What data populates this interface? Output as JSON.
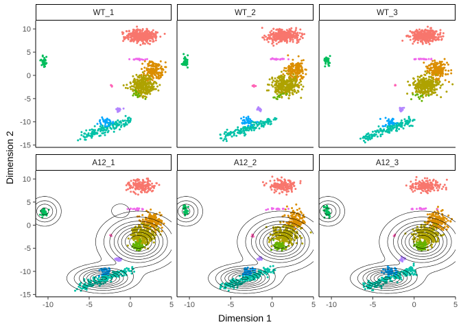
{
  "chart_data": {
    "type": "scatter",
    "title": "",
    "xlabel": "Dimension 1",
    "ylabel": "Dimension 2",
    "xlim": [
      -11.5,
      5
    ],
    "ylim": [
      -15.5,
      11.8
    ],
    "x_ticks": [
      -10,
      -5,
      0,
      5
    ],
    "x_tick_labels": [
      "-10",
      "-5",
      "0",
      "5"
    ],
    "y_ticks": [
      10,
      5,
      0,
      -5,
      -10,
      -15
    ],
    "y_tick_labels": [
      "10",
      "5",
      "0",
      "-5",
      "-10",
      "-15"
    ],
    "grid": false,
    "legend": "none",
    "facet_layout": {
      "rows": 2,
      "cols": 3
    },
    "panels": [
      {
        "label": "WT_1",
        "density_contours": false
      },
      {
        "label": "WT_2",
        "density_contours": false
      },
      {
        "label": "WT_3",
        "density_contours": false
      },
      {
        "label": "A12_1",
        "density_contours": true
      },
      {
        "label": "A12_2",
        "density_contours": true
      },
      {
        "label": "A12_3",
        "density_contours": true
      }
    ],
    "clusters": [
      {
        "color": "#F8766D",
        "center": [
          1.3,
          8.5
        ],
        "spread": [
          1.5,
          1.1
        ],
        "wt_count": 380,
        "a12_count": 170
      },
      {
        "color": "#DB8E00",
        "center": [
          2.8,
          1.0
        ],
        "spread": [
          1.0,
          1.7
        ],
        "wt_count": 170,
        "a12_count": 150
      },
      {
        "color": "#AEA200",
        "center": [
          1.5,
          -2.2
        ],
        "spread": [
          1.3,
          1.7
        ],
        "wt_count": 280,
        "a12_count": 260
      },
      {
        "color": "#64B200",
        "center": [
          0.8,
          -4.5
        ],
        "spread": [
          0.6,
          0.8
        ],
        "wt_count": 12,
        "a12_count": 60
      },
      {
        "color": "#00BD5C",
        "center": [
          -10.5,
          3.0
        ],
        "spread": [
          0.3,
          1.0
        ],
        "wt_count": 30,
        "a12_count": 35
      },
      {
        "color": "#00C1A7",
        "center": [
          -3.0,
          -11.5
        ],
        "spread": [
          3.0,
          1.0
        ],
        "wt_count": 150,
        "a12_count": 200
      },
      {
        "color": "#00A6FF",
        "center": [
          -3.0,
          -10.0
        ],
        "spread": [
          0.7,
          0.8
        ],
        "wt_count": 30,
        "a12_count": 40
      },
      {
        "color": "#B385FF",
        "center": [
          -1.5,
          -7.3
        ],
        "spread": [
          0.3,
          0.4
        ],
        "wt_count": 15,
        "a12_count": 20
      },
      {
        "color": "#EF67EB",
        "center": [
          0.8,
          3.5
        ],
        "spread": [
          1.0,
          0.15
        ],
        "wt_count": 20,
        "a12_count": 15
      },
      {
        "color": "#FF63B6",
        "center": [
          -2.3,
          -2.2
        ],
        "spread": [
          0.15,
          0.2
        ],
        "wt_count": 5,
        "a12_count": 5
      }
    ],
    "contour_peaks": [
      {
        "center": [
          1.0,
          -3.6
        ],
        "sigma": [
          2.2,
          2.8
        ],
        "weight": 1.0
      },
      {
        "center": [
          -3.3,
          -11.5
        ],
        "sigma": [
          1.9,
          1.4
        ],
        "weight": 0.9
      },
      {
        "center": [
          -10.4,
          3.0
        ],
        "sigma": [
          1.0,
          1.6
        ],
        "weight": 0.45
      }
    ]
  }
}
